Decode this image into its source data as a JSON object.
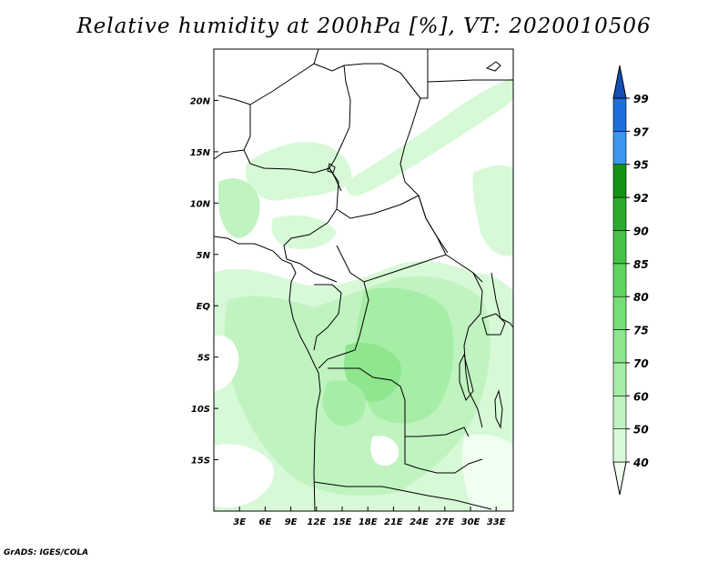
{
  "title": "Relative humidity at 200hPa [%], VT: 2020010506",
  "credit": "GrADS: IGES/COLA",
  "chart_data": {
    "type": "heatmap",
    "field": "Relative humidity at 200hPa",
    "unit": "%",
    "valid_time": "2020010506",
    "lon_range": [
      0,
      35
    ],
    "lat_range": [
      -20,
      25
    ],
    "lon_ticks": [
      "3E",
      "6E",
      "9E",
      "12E",
      "15E",
      "18E",
      "21E",
      "24E",
      "27E",
      "30E",
      "33E"
    ],
    "lat_ticks": [
      "20N",
      "15N",
      "10N",
      "5N",
      "EQ",
      "5S",
      "10S",
      "15S"
    ],
    "colorbar": {
      "levels": [
        "40",
        "50",
        "60",
        "70",
        "75",
        "80",
        "85",
        "90",
        "92",
        "95",
        "97",
        "99"
      ],
      "colors": [
        "#f0fff0",
        "#d7f9d7",
        "#c0f3c0",
        "#a6eda6",
        "#8ee68e",
        "#76de76",
        "#5fd45f",
        "#46c246",
        "#2aab2a",
        "#129312",
        "#3c96f0",
        "#1e6edc",
        "#1450b4"
      ]
    }
  }
}
